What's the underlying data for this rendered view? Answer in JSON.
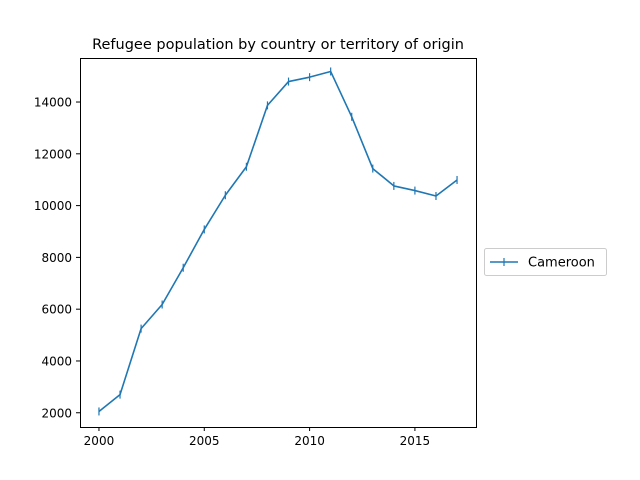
{
  "chart_data": {
    "type": "line",
    "title": "Refugee population by country or territory of origin",
    "xlabel": "",
    "ylabel": "",
    "xlim": [
      1999.1,
      2017.9
    ],
    "ylim": [
      1450,
      15700
    ],
    "x_ticks": [
      2000,
      2005,
      2010,
      2015
    ],
    "y_ticks": [
      2000,
      4000,
      6000,
      8000,
      10000,
      12000,
      14000
    ],
    "grid": false,
    "legend_position": "center-right-outside",
    "series": [
      {
        "name": "Cameroon",
        "color": "#1f77b4",
        "marker": "vertical-line",
        "x": [
          2000,
          2001,
          2002,
          2003,
          2004,
          2005,
          2006,
          2007,
          2008,
          2009,
          2010,
          2011,
          2012,
          2013,
          2014,
          2015,
          2016,
          2017
        ],
        "values": [
          2050,
          2700,
          5250,
          6180,
          7600,
          9080,
          10400,
          11500,
          13870,
          14790,
          14960,
          15180,
          13430,
          11430,
          10760,
          10580,
          10370,
          10990
        ]
      }
    ]
  }
}
